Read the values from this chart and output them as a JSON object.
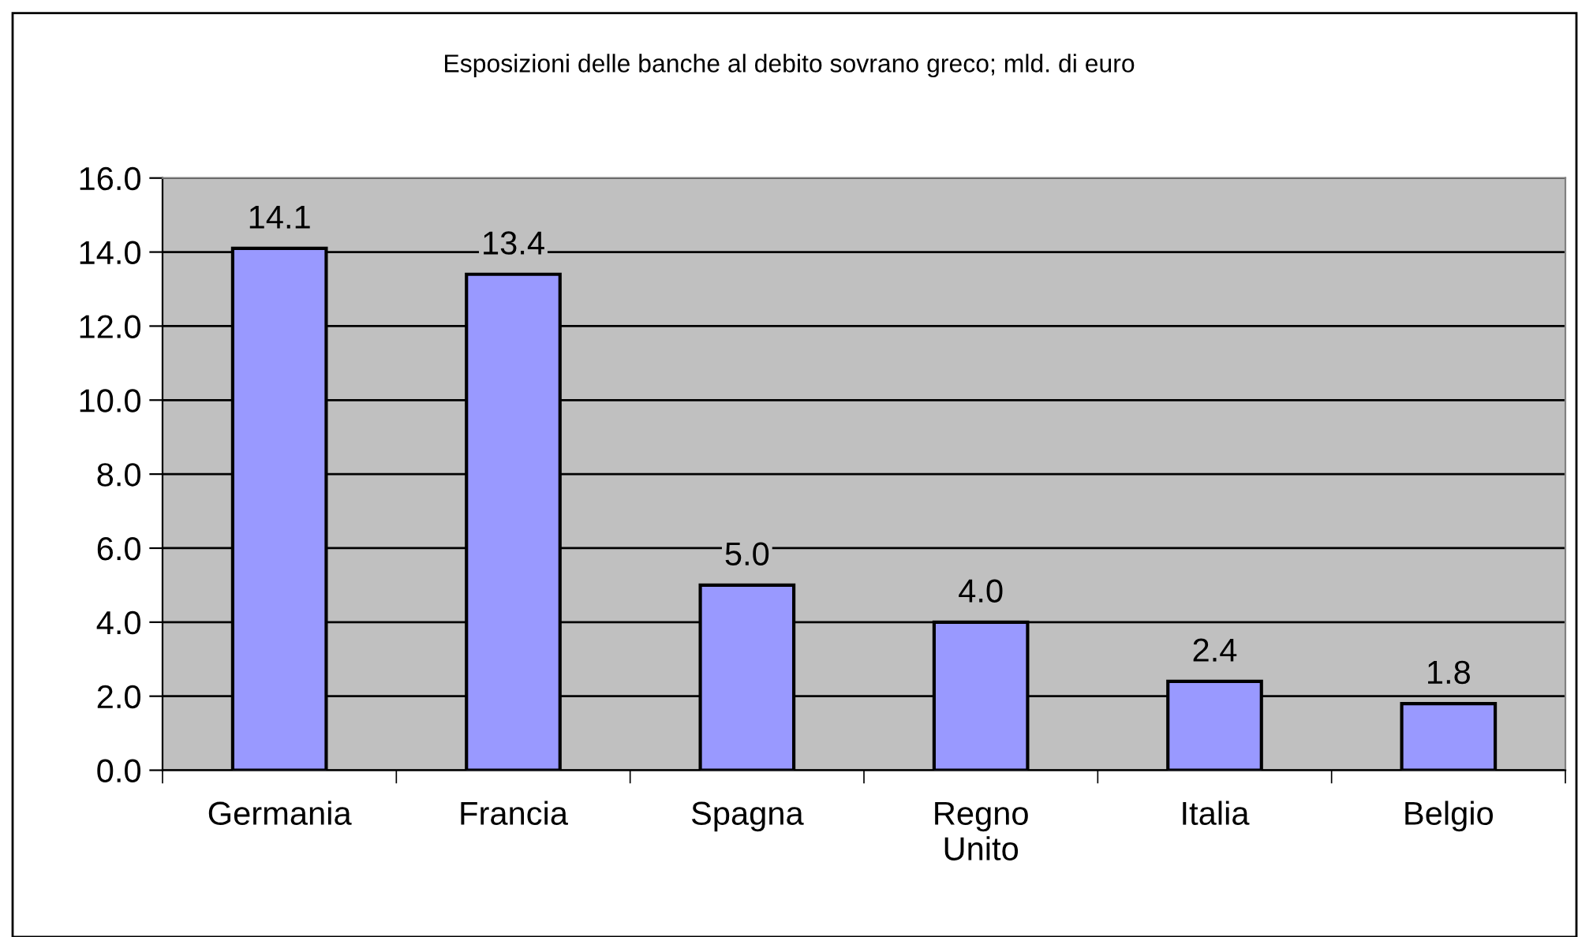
{
  "chart_data": {
    "type": "bar",
    "title": "Esposizioni delle banche al debito sovrano greco; mld. di euro",
    "categories": [
      "Germania",
      "Francia",
      "Spagna",
      "Regno\nUnito",
      "Italia",
      "Belgio"
    ],
    "values": [
      14.1,
      13.4,
      5.0,
      4.0,
      2.4,
      1.8
    ],
    "value_labels": [
      "14.1",
      "13.4",
      "5.0",
      "4.0",
      "2.4",
      "1.8"
    ],
    "color": "#9999ff",
    "ylim": [
      0,
      16
    ],
    "yticks": [
      {
        "value": 0,
        "label": "0.0"
      },
      {
        "value": 2,
        "label": "2.0"
      },
      {
        "value": 4,
        "label": "4.0"
      },
      {
        "value": 6,
        "label": "6.0"
      },
      {
        "value": 8,
        "label": "8.0"
      },
      {
        "value": 10,
        "label": "10.0"
      },
      {
        "value": 12,
        "label": "12.0"
      },
      {
        "value": 14,
        "label": "14.0"
      },
      {
        "value": 16,
        "label": "16.0"
      }
    ],
    "grid": "y",
    "legend": false
  }
}
